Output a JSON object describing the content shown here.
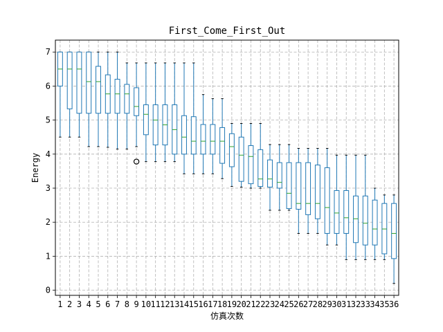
{
  "chart_data": {
    "type": "box",
    "title": "First_Come_First_Out",
    "xlabel": "仿真次数",
    "ylabel": "Energy",
    "ylim": [
      -0.15,
      7.35
    ],
    "yticks": [
      0,
      1,
      2,
      3,
      4,
      5,
      6,
      7
    ],
    "grid": true,
    "categories": [
      "1",
      "2",
      "3",
      "4",
      "5",
      "6",
      "7",
      "8",
      "9",
      "10",
      "11",
      "12",
      "13",
      "14",
      "15",
      "16",
      "17",
      "18",
      "19",
      "20",
      "21",
      "22",
      "23",
      "24",
      "25",
      "26",
      "27",
      "28",
      "29",
      "30",
      "31",
      "32",
      "33",
      "34",
      "35",
      "36"
    ],
    "boxes": [
      {
        "whislo": 4.5,
        "q1": 6.0,
        "med": 6.5,
        "q3": 7.0,
        "whishi": 7.0,
        "fliers": []
      },
      {
        "whislo": 4.5,
        "q1": 5.33,
        "med": 6.5,
        "q3": 7.0,
        "whishi": 7.0,
        "fliers": []
      },
      {
        "whislo": 4.5,
        "q1": 5.2,
        "med": 6.5,
        "q3": 7.0,
        "whishi": 7.0,
        "fliers": []
      },
      {
        "whislo": 4.22,
        "q1": 5.2,
        "med": 6.13,
        "q3": 7.0,
        "whishi": 7.0,
        "fliers": []
      },
      {
        "whislo": 4.22,
        "q1": 5.2,
        "med": 6.13,
        "q3": 6.58,
        "whishi": 7.0,
        "fliers": []
      },
      {
        "whislo": 4.2,
        "q1": 5.2,
        "med": 5.77,
        "q3": 6.33,
        "whishi": 7.0,
        "fliers": []
      },
      {
        "whislo": 4.15,
        "q1": 5.2,
        "med": 5.77,
        "q3": 6.2,
        "whishi": 7.0,
        "fliers": []
      },
      {
        "whislo": 4.15,
        "q1": 5.2,
        "med": 5.77,
        "q3": 6.05,
        "whishi": 6.68,
        "fliers": []
      },
      {
        "whislo": 4.22,
        "q1": 5.13,
        "med": 5.4,
        "q3": 5.95,
        "whishi": 6.68,
        "fliers": [
          3.78
        ]
      },
      {
        "whislo": 3.78,
        "q1": 4.57,
        "med": 5.17,
        "q3": 5.45,
        "whishi": 6.68,
        "fliers": []
      },
      {
        "whislo": 3.78,
        "q1": 4.27,
        "med": 5.0,
        "q3": 5.45,
        "whishi": 6.68,
        "fliers": []
      },
      {
        "whislo": 3.78,
        "q1": 4.27,
        "med": 4.86,
        "q3": 5.45,
        "whishi": 6.68,
        "fliers": []
      },
      {
        "whislo": 3.78,
        "q1": 4.0,
        "med": 4.72,
        "q3": 5.45,
        "whishi": 6.68,
        "fliers": []
      },
      {
        "whislo": 3.42,
        "q1": 4.0,
        "med": 4.5,
        "q3": 5.13,
        "whishi": 6.68,
        "fliers": []
      },
      {
        "whislo": 3.42,
        "q1": 4.0,
        "med": 4.38,
        "q3": 5.1,
        "whishi": 6.68,
        "fliers": []
      },
      {
        "whislo": 3.42,
        "q1": 4.0,
        "med": 4.38,
        "q3": 4.87,
        "whishi": 5.75,
        "fliers": []
      },
      {
        "whislo": 3.42,
        "q1": 4.0,
        "med": 4.38,
        "q3": 4.87,
        "whishi": 5.63,
        "fliers": []
      },
      {
        "whislo": 3.28,
        "q1": 3.73,
        "med": 4.38,
        "q3": 4.78,
        "whishi": 5.63,
        "fliers": []
      },
      {
        "whislo": 3.05,
        "q1": 3.63,
        "med": 4.22,
        "q3": 4.6,
        "whishi": 4.9,
        "fliers": []
      },
      {
        "whislo": 3.03,
        "q1": 3.2,
        "med": 3.97,
        "q3": 4.5,
        "whishi": 4.9,
        "fliers": []
      },
      {
        "whislo": 3.0,
        "q1": 3.13,
        "med": 3.93,
        "q3": 4.25,
        "whishi": 4.9,
        "fliers": []
      },
      {
        "whislo": 3.0,
        "q1": 3.05,
        "med": 3.27,
        "q3": 4.13,
        "whishi": 4.9,
        "fliers": []
      },
      {
        "whislo": 2.35,
        "q1": 3.03,
        "med": 3.27,
        "q3": 3.83,
        "whishi": 4.28,
        "fliers": []
      },
      {
        "whislo": 2.35,
        "q1": 3.0,
        "med": 3.17,
        "q3": 3.75,
        "whishi": 4.28,
        "fliers": []
      },
      {
        "whislo": 2.35,
        "q1": 2.4,
        "med": 2.85,
        "q3": 3.75,
        "whishi": 4.28,
        "fliers": []
      },
      {
        "whislo": 1.67,
        "q1": 2.38,
        "med": 2.55,
        "q3": 3.75,
        "whishi": 4.17,
        "fliers": []
      },
      {
        "whislo": 1.67,
        "q1": 2.22,
        "med": 2.55,
        "q3": 3.75,
        "whishi": 4.17,
        "fliers": []
      },
      {
        "whislo": 1.67,
        "q1": 2.1,
        "med": 2.55,
        "q3": 3.68,
        "whishi": 4.17,
        "fliers": []
      },
      {
        "whislo": 1.33,
        "q1": 1.67,
        "med": 2.43,
        "q3": 3.6,
        "whishi": 4.17,
        "fliers": []
      },
      {
        "whislo": 1.33,
        "q1": 1.67,
        "med": 2.27,
        "q3": 2.93,
        "whishi": 3.97,
        "fliers": []
      },
      {
        "whislo": 0.9,
        "q1": 1.67,
        "med": 2.13,
        "q3": 2.93,
        "whishi": 3.97,
        "fliers": []
      },
      {
        "whislo": 0.9,
        "q1": 1.4,
        "med": 2.1,
        "q3": 2.77,
        "whishi": 3.97,
        "fliers": []
      },
      {
        "whislo": 0.9,
        "q1": 1.33,
        "med": 1.97,
        "q3": 2.77,
        "whishi": 3.97,
        "fliers": []
      },
      {
        "whislo": 0.9,
        "q1": 1.33,
        "med": 1.8,
        "q3": 2.65,
        "whishi": 3.0,
        "fliers": []
      },
      {
        "whislo": 0.9,
        "q1": 1.07,
        "med": 1.8,
        "q3": 2.55,
        "whishi": 2.8,
        "fliers": []
      },
      {
        "whislo": 0.2,
        "q1": 0.93,
        "med": 1.67,
        "q3": 2.55,
        "whishi": 2.8,
        "fliers": []
      }
    ],
    "colors": {
      "box": "#1f77b4",
      "median": "#2ca02c",
      "cap": "#000000",
      "grid": "#b0b0b0",
      "flier": "#000000"
    }
  }
}
